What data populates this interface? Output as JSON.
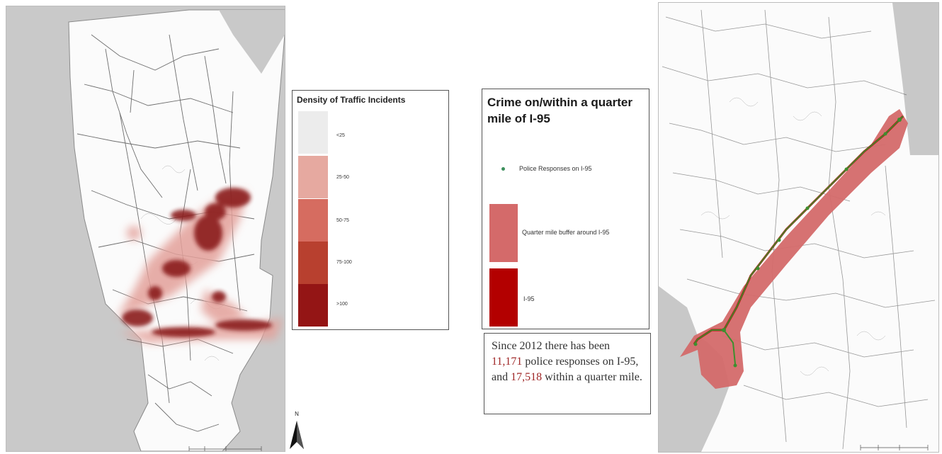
{
  "density_legend": {
    "title": "Density of Traffic Incidents",
    "classes": [
      {
        "label": "<25",
        "color": "#ececec"
      },
      {
        "label": "25-50",
        "color": "#e6a9a0"
      },
      {
        "label": "50-75",
        "color": "#d66c60"
      },
      {
        "label": "75-100",
        "color": "#b8402f"
      },
      {
        "label": ">100",
        "color": "#941515"
      }
    ]
  },
  "crime_legend": {
    "title": "Crime on/within a quarter mile of I-95",
    "police_label": "Police Responses on I-95",
    "buffer_label": "Quarter mile buffer around I-95",
    "i95_label": "I-95"
  },
  "stats": {
    "part1": "Since 2012 there has been",
    "count_on": "11,171",
    "part2": "police responses on I-95, and",
    "count_within": "17,518",
    "part3": "within a quarter mile."
  },
  "north_arrow": {
    "label": "N"
  },
  "colors": {
    "water": "#c8c8c8",
    "road": "#4a4a4a",
    "hotspot_dark": "#8b1a1a",
    "hotspot_light": "#e3a09a",
    "buffer": "#d46a6a",
    "interstate": "#3d8f2e"
  }
}
